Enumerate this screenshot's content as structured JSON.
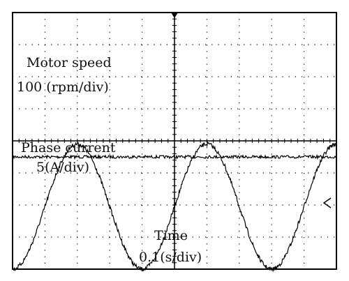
{
  "chart_data": {
    "type": "line",
    "title": "",
    "grid": true,
    "divisions": {
      "horizontal": 10,
      "vertical": 8
    },
    "time_scale": {
      "label": "Time",
      "scale": "0.1(s/div)",
      "seconds_per_div": 0.1
    },
    "series": [
      {
        "label": "Motor speed",
        "scale": "100 (rpm/div)",
        "shape": "flat (constant speed)",
        "level_div": 4.5
      },
      {
        "label": "Phase current",
        "scale": "5(A/div)",
        "shape": "sine",
        "period_div": 4.0,
        "amplitude_div": 1.95,
        "peaks_at_div": [
          2.0,
          6.0
        ],
        "troughs_at_div": [
          4.0,
          8.0
        ]
      }
    ],
    "markers": {
      "trigger": "top-center arrow",
      "right_reference": "arrow on right edge at current channel"
    }
  }
}
